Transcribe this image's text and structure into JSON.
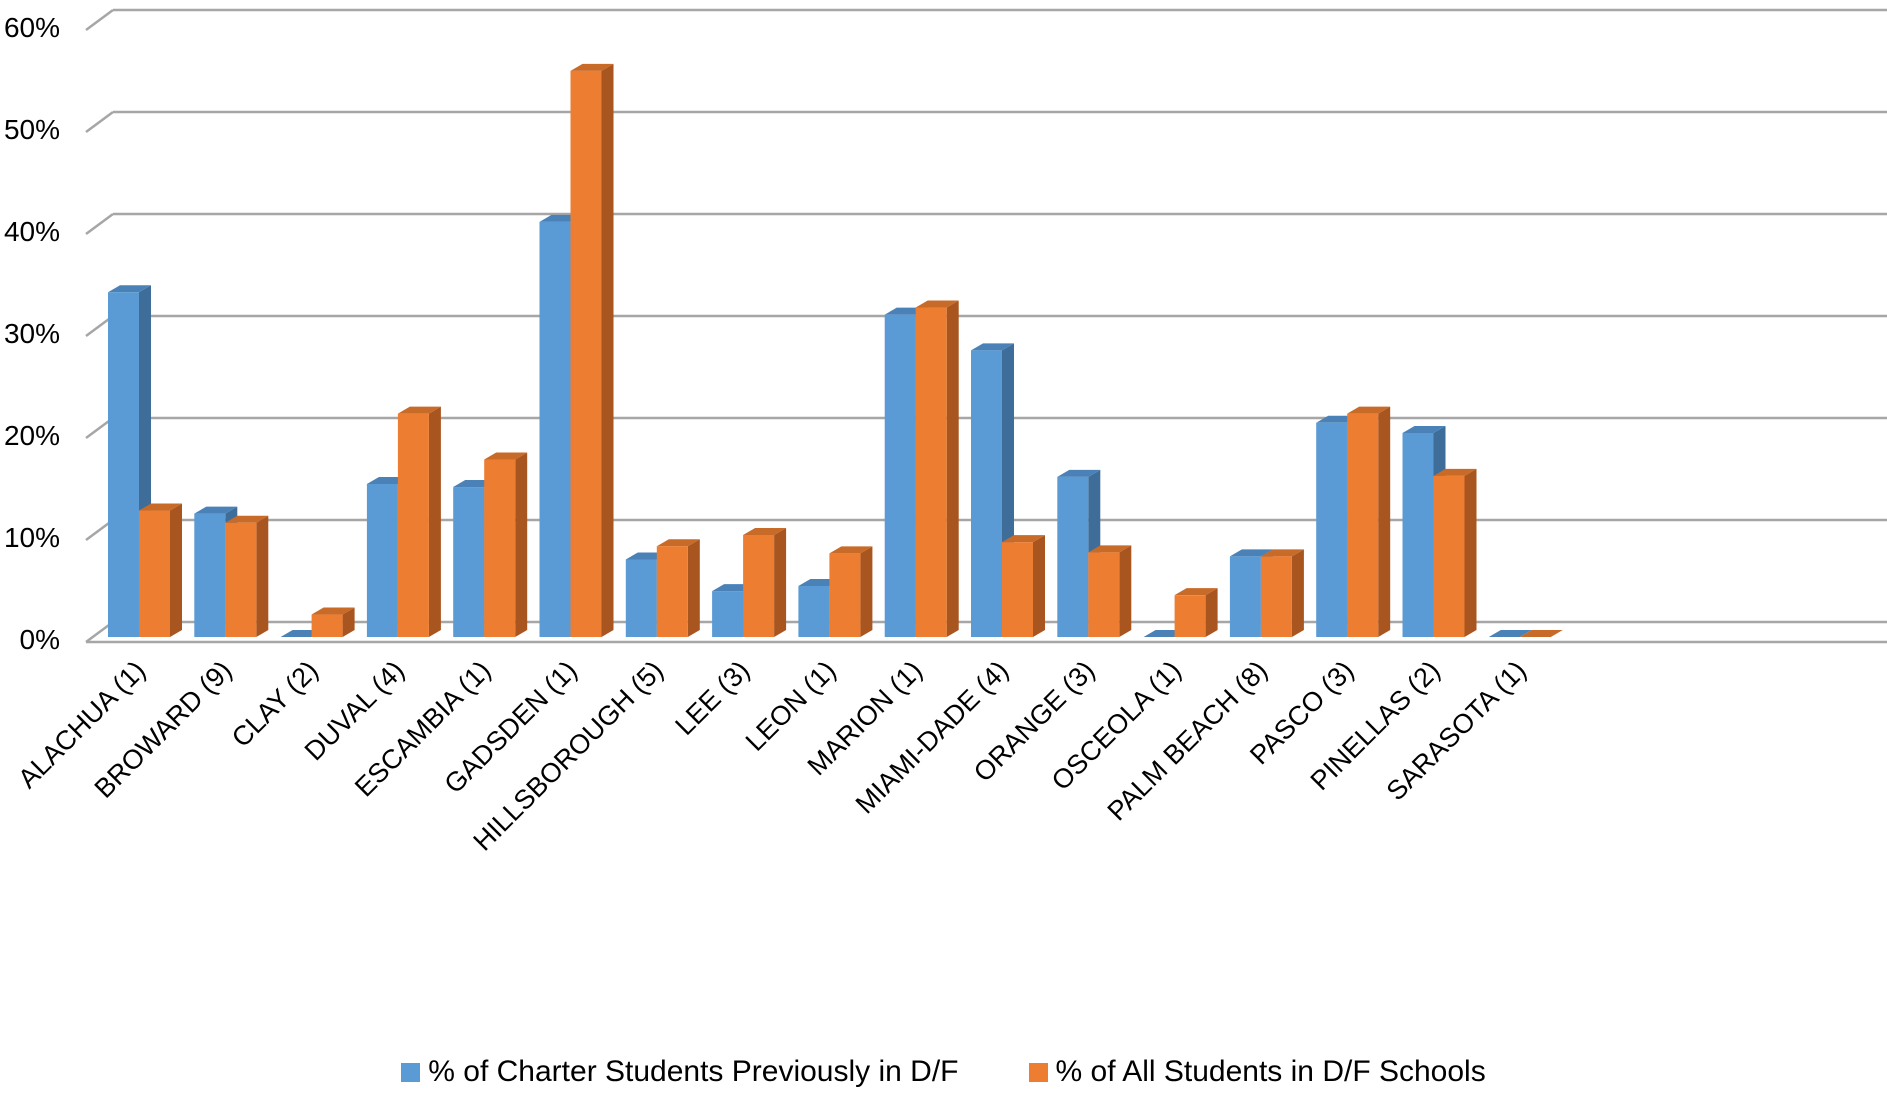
{
  "chart_data": {
    "type": "bar",
    "title": "",
    "xlabel": "",
    "ylabel": "",
    "ylim": [
      0,
      60
    ],
    "yticks": [
      "0%",
      "10%",
      "20%",
      "30%",
      "40%",
      "50%",
      "60%"
    ],
    "ytick_values": [
      0,
      10,
      20,
      30,
      40,
      50,
      60
    ],
    "grid": true,
    "legend_position": "bottom",
    "categories": [
      "ALACHUA (1)",
      "BROWARD (9)",
      "CLAY (2)",
      "DUVAL (4)",
      "ESCAMBIA (1)",
      "GADSDEN (1)",
      "HILLSBOROUGH (5)",
      "LEE (3)",
      "LEON (1)",
      "MARION (1)",
      "MIAMI-DADE (4)",
      "ORANGE (3)",
      "OSCEOLA (1)",
      "PALM BEACH (8)",
      "PASCO (3)",
      "PINELLAS (2)",
      "SARASOTA (1)"
    ],
    "series": [
      {
        "name": "% of Charter Students Previously in D/F",
        "color": "#5b9bd5",
        "side_color": "#3e6d99",
        "top_color": "#4a82b8",
        "values": [
          33.8,
          12.1,
          0,
          15.0,
          14.7,
          40.7,
          7.6,
          4.5,
          5.0,
          31.6,
          28.1,
          15.7,
          0,
          7.9,
          21.0,
          20.0,
          0
        ]
      },
      {
        "name": "% of All Students in D/F Schools",
        "color": "#ed7d31",
        "side_color": "#a9551f",
        "top_color": "#c86a28",
        "values": [
          12.4,
          11.2,
          2.2,
          21.9,
          17.4,
          55.5,
          8.9,
          10.0,
          8.2,
          32.3,
          9.3,
          8.3,
          4.1,
          7.9,
          21.9,
          15.8,
          0
        ]
      }
    ]
  }
}
